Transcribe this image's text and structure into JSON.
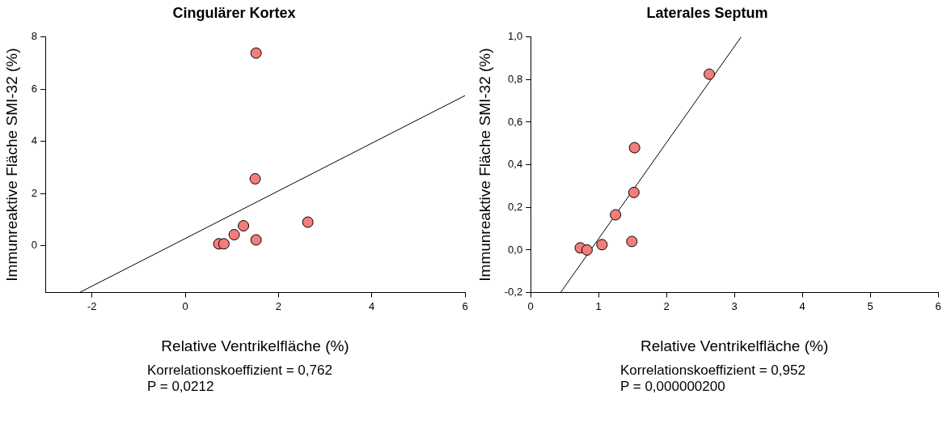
{
  "chart_data": [
    {
      "type": "scatter",
      "title": "Cingulärer Kortex",
      "xlabel": "Relative Ventrikelfläche (%)",
      "ylabel": "Immunreaktive Fläche SMI-32 (%)",
      "xlim": [
        -3,
        6
      ],
      "xticks": [
        -2,
        0,
        2,
        4,
        6
      ],
      "ylim": [
        -1.8,
        8
      ],
      "yticks": [
        0,
        2,
        4,
        6,
        8
      ],
      "grid": false,
      "legend": false,
      "marker": "circle",
      "series": [
        {
          "type": "scatter",
          "color": "#f47c7c",
          "x": [
            0.72,
            0.83,
            1.05,
            1.25,
            1.5,
            1.52,
            1.52,
            2.63
          ],
          "values": [
            0.07,
            0.07,
            0.42,
            0.76,
            2.56,
            7.38,
            0.22,
            0.9
          ]
        },
        {
          "type": "line",
          "color": "#000000",
          "marker": "none",
          "line_style": "solid",
          "x": [
            -2.27,
            6
          ],
          "values": [
            -1.8,
            5.75
          ]
        }
      ],
      "annotations": [
        "Korrelationskoeffizient = 0,762",
        "P = 0,0212"
      ]
    },
    {
      "type": "scatter",
      "title": "Laterales Septum",
      "xlabel": "Relative Ventrikelfläche (%)",
      "ylabel": "Immunreaktive Fläche SMI-32 (%)",
      "xlim": [
        0,
        6
      ],
      "xticks": [
        0,
        1,
        2,
        3,
        4,
        5,
        6
      ],
      "ylim": [
        -0.2,
        1
      ],
      "yticks": [
        {
          "value": -0.2,
          "label": "-0,2"
        },
        {
          "value": 0,
          "label": "0,0"
        },
        {
          "value": 0.2,
          "label": "0,2"
        },
        {
          "value": 0.4,
          "label": "0,4"
        },
        {
          "value": 0.6,
          "label": "0,6"
        },
        {
          "value": 0.8,
          "label": "0,8"
        },
        {
          "value": 1,
          "label": "1,0"
        }
      ],
      "grid": false,
      "legend": false,
      "marker": "circle",
      "series": [
        {
          "type": "scatter",
          "color": "#f47c7c",
          "x": [
            0.73,
            0.83,
            1.05,
            1.25,
            1.49,
            1.52,
            1.53,
            2.63
          ],
          "values": [
            0.01,
            0.0,
            0.025,
            0.165,
            0.04,
            0.27,
            0.48,
            0.825
          ]
        },
        {
          "type": "line",
          "color": "#000000",
          "marker": "none",
          "line_style": "solid",
          "x": [
            0.44,
            3.1
          ],
          "values": [
            -0.2,
            1.0
          ]
        }
      ],
      "annotations": [
        "Korrelationskoeffizient = 0,952",
        "P = 0,000000200"
      ]
    }
  ]
}
